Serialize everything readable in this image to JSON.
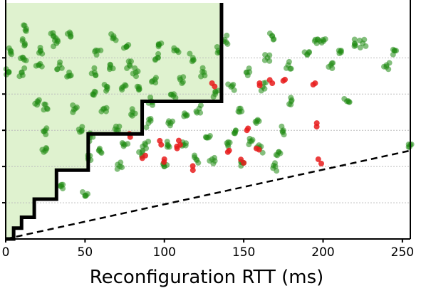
{
  "chart_data": {
    "type": "scatter",
    "xlabel": "Reconfiguration RTT (ms)",
    "ylabel": "",
    "xlim": [
      0,
      255
    ],
    "ylim": [
      0,
      320
    ],
    "x_ticks": [
      0,
      50,
      100,
      150,
      200,
      250
    ],
    "x_tick_labels": [
      "0",
      "50",
      "100",
      "150",
      "200",
      "250"
    ],
    "grid_y_values": [
      50,
      100,
      150,
      200,
      250
    ],
    "grid": "horizontal dotted",
    "colors": {
      "point_green": "#1f8a12",
      "point_red": "#e81c1c",
      "region_fill": "#dff2cf",
      "frontier": "#000000",
      "reference_line": "#000000",
      "grid": "#bdbdbd"
    },
    "shaded_region": "area above the frontier step line",
    "frontier_step": {
      "x": [
        0,
        5,
        10,
        18,
        32,
        52,
        86,
        136
      ],
      "y": [
        0,
        15,
        30,
        55,
        95,
        145,
        190,
        320
      ]
    },
    "reference_line": {
      "style": "dashed",
      "x": [
        0,
        255
      ],
      "y": [
        0,
        122
      ]
    },
    "series": [
      {
        "color_role": "green",
        "x": [
          2,
          3,
          10,
          11,
          12,
          13,
          20,
          21,
          22,
          24,
          25,
          26,
          30,
          32,
          34,
          36,
          40,
          41,
          44,
          48,
          50,
          52,
          53,
          55,
          56,
          58,
          60,
          62,
          64,
          66,
          68,
          70,
          72,
          74,
          75,
          76,
          78,
          80,
          82,
          84,
          86,
          88,
          90,
          92,
          94,
          96,
          98,
          100,
          102,
          104,
          106,
          108,
          110,
          112,
          114,
          118,
          120,
          122,
          125,
          128,
          130,
          132,
          134,
          138,
          140,
          142,
          145,
          148,
          150,
          152,
          155,
          158,
          160,
          162,
          165,
          168,
          170,
          172,
          175,
          178,
          180,
          190,
          196,
          200,
          205,
          210,
          215,
          220,
          225,
          240,
          245,
          255
        ],
        "y": [
          230,
          260,
          230,
          250,
          270,
          290,
          190,
          240,
          260,
          120,
          150,
          180,
          280,
          270,
          240,
          75,
          230,
          280,
          180,
          150,
          60,
          110,
          140,
          200,
          230,
          260,
          120,
          180,
          210,
          240,
          280,
          150,
          100,
          210,
          130,
          265,
          240,
          175,
          230,
          210,
          120,
          130,
          160,
          190,
          220,
          250,
          270,
          100,
          130,
          160,
          200,
          260,
          220,
          130,
          170,
          250,
          110,
          180,
          230,
          140,
          110,
          200,
          260,
          275,
          130,
          210,
          150,
          180,
          105,
          230,
          135,
          160,
          125,
          210,
          250,
          280,
          100,
          120,
          150,
          240,
          190,
          255,
          270,
          275,
          240,
          260,
          190,
          270,
          270,
          240,
          260,
          130
        ]
      },
      {
        "color_role": "red",
        "x": [
          78,
          88,
          98,
          100,
          108,
          110,
          118,
          130,
          140,
          150,
          152,
          158,
          160,
          168,
          176,
          195,
          196,
          197
        ],
        "y": [
          145,
          115,
          130,
          110,
          125,
          130,
          95,
          215,
          120,
          105,
          150,
          125,
          215,
          215,
          220,
          215,
          155,
          110
        ]
      }
    ]
  }
}
